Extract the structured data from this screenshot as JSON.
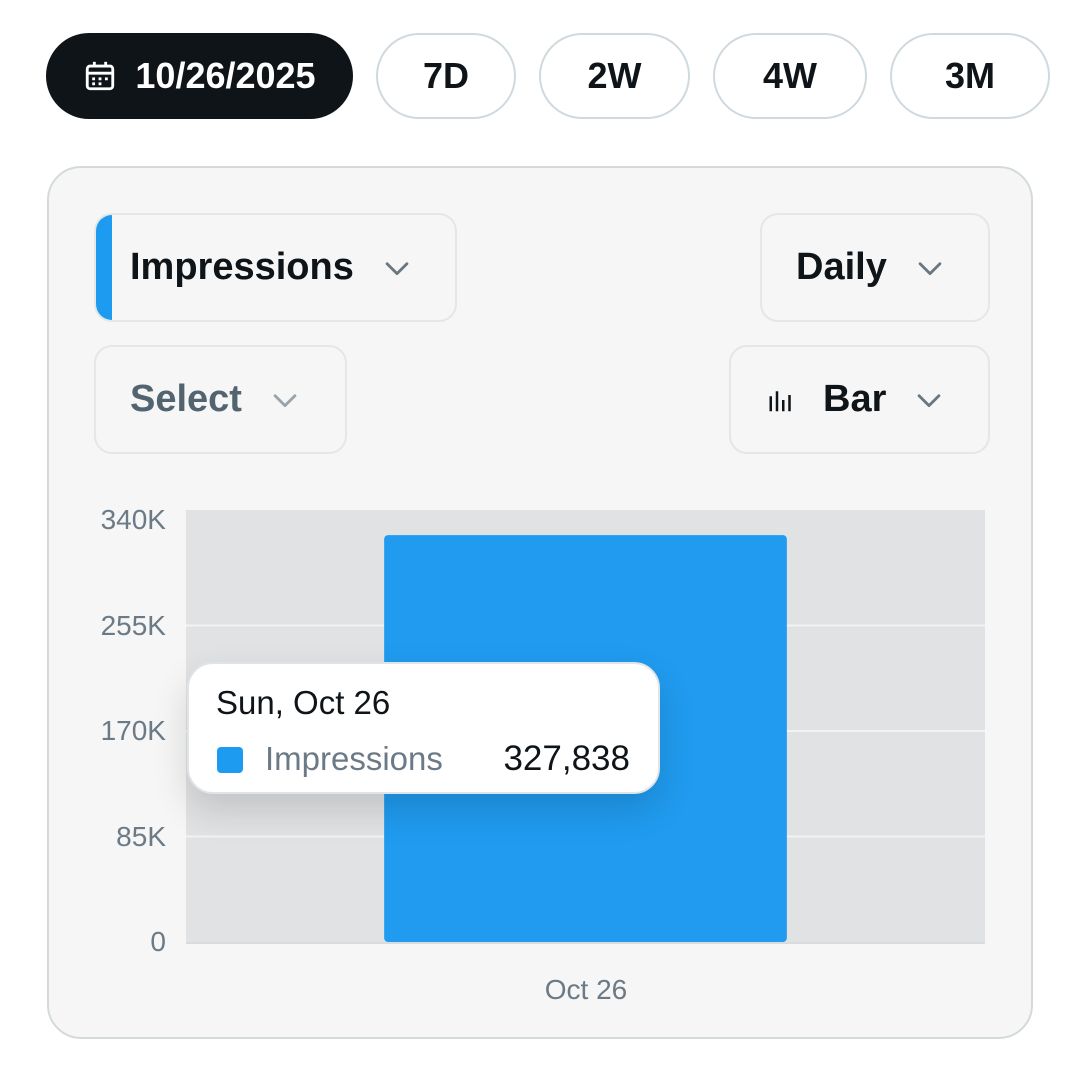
{
  "range_selector": {
    "date_label": "10/26/2025",
    "presets": [
      "7D",
      "2W",
      "4W",
      "3M"
    ]
  },
  "controls": {
    "metric": "Impressions",
    "interval": "Daily",
    "compare": "Select",
    "chart_type": "Bar"
  },
  "colors": {
    "accent": "#1d9bf0",
    "active_pill": "#0f1419",
    "plot_bg": "#e1e2e4"
  },
  "icons": [
    "calendar-icon",
    "chevron-down-icon",
    "bar-chart-icon"
  ],
  "tooltip": {
    "date": "Sun, Oct 26",
    "series_name": "Impressions",
    "value": "327,838"
  },
  "chart_data": {
    "type": "bar",
    "categories": [
      "Oct 26"
    ],
    "series": [
      {
        "name": "Impressions",
        "values": [
          327838
        ]
      }
    ],
    "ylim": [
      0,
      340000
    ],
    "yticks": [
      0,
      85000,
      170000,
      255000,
      340000
    ],
    "ytick_labels": [
      "0",
      "85K",
      "170K",
      "255K",
      "340K"
    ],
    "grid": true
  }
}
